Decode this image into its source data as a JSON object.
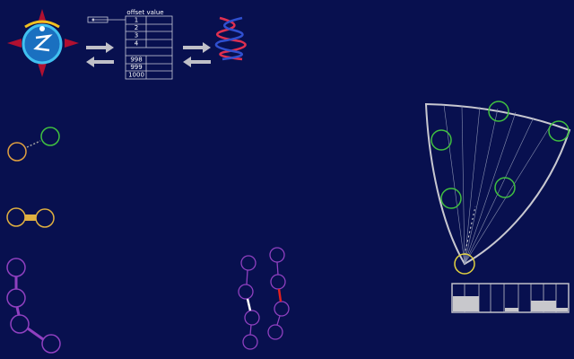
{
  "table": {
    "header": "offset value",
    "rows_top": [
      1,
      2,
      3,
      4
    ],
    "rows_bottom": [
      998,
      999,
      1000
    ]
  }
}
